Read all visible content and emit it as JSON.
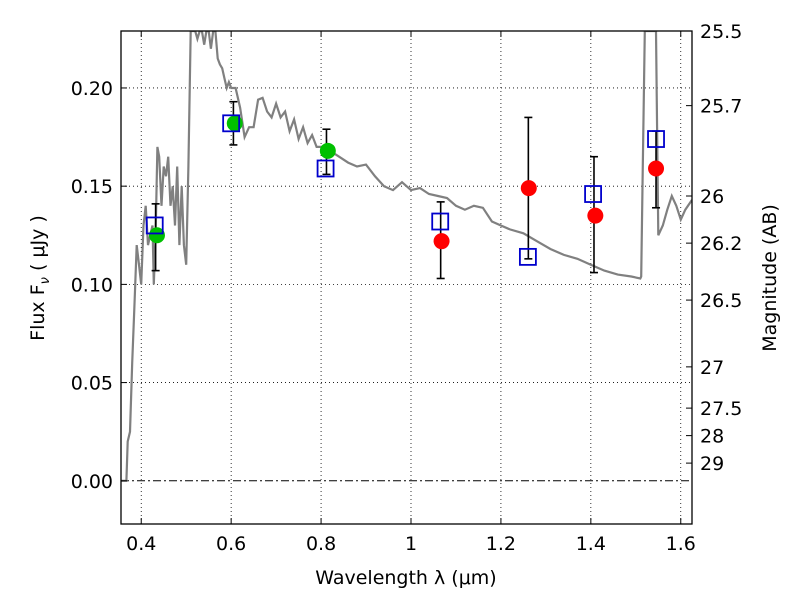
{
  "chart_data": {
    "type": "scatter",
    "xlabel": "Wavelength  λ (μm)",
    "ylabel": "Flux  F",
    "ylabel_sub": "ν",
    "ylabel_unit": "  ( μJy )",
    "y2label": "Magnitude (AB)",
    "xlim": [
      0.355,
      1.625
    ],
    "ylim": [
      -0.022,
      0.229
    ],
    "x_ticks": [
      0.4,
      0.6,
      0.8,
      1.0,
      1.2,
      1.4,
      1.6
    ],
    "x_tick_labels": [
      "0.4",
      "0.6",
      "0.8",
      "1",
      "1.2",
      "1.4",
      "1.6"
    ],
    "y_ticks": [
      0.0,
      0.05,
      0.1,
      0.15,
      0.2
    ],
    "y_tick_labels": [
      "0.00",
      "0.05",
      "0.10",
      "0.15",
      "0.20"
    ],
    "y2_ticks": [
      {
        "label": "25.5",
        "flux": 0.229
      },
      {
        "label": "25.7",
        "flux": 0.191
      },
      {
        "label": "26",
        "flux": 0.145
      },
      {
        "label": "26.2",
        "flux": 0.121
      },
      {
        "label": "26.5",
        "flux": 0.092
      },
      {
        "label": "27",
        "flux": 0.058
      },
      {
        "label": "27.5",
        "flux": 0.037
      },
      {
        "label": "28",
        "flux": 0.023
      },
      {
        "label": "29",
        "flux": 0.009
      }
    ],
    "grid": true,
    "colors": {
      "line": "#808080",
      "green": "#00c000",
      "red": "#ff0000",
      "square": "#0000cc",
      "errorbar": "#000000"
    },
    "series": [
      {
        "kind": "line",
        "x": [
          0.355,
          0.367,
          0.37,
          0.375,
          0.38,
          0.385,
          0.39,
          0.395,
          0.4,
          0.405,
          0.41,
          0.415,
          0.42,
          0.425,
          0.428,
          0.432,
          0.436,
          0.44,
          0.445,
          0.45,
          0.455,
          0.46,
          0.465,
          0.47,
          0.475,
          0.48,
          0.485,
          0.49,
          0.495,
          0.5,
          0.505,
          0.51,
          0.515,
          0.52,
          0.525,
          0.53,
          0.535,
          0.54,
          0.545,
          0.55,
          0.555,
          0.56,
          0.565,
          0.57,
          0.575,
          0.58,
          0.585,
          0.59,
          0.595,
          0.6,
          0.61,
          0.62,
          0.63,
          0.64,
          0.65,
          0.66,
          0.67,
          0.68,
          0.69,
          0.7,
          0.71,
          0.72,
          0.73,
          0.74,
          0.75,
          0.76,
          0.77,
          0.78,
          0.79,
          0.8,
          0.82,
          0.84,
          0.86,
          0.88,
          0.9,
          0.92,
          0.94,
          0.96,
          0.98,
          1.0,
          1.02,
          1.04,
          1.06,
          1.08,
          1.1,
          1.12,
          1.14,
          1.16,
          1.18,
          1.2,
          1.22,
          1.25,
          1.28,
          1.31,
          1.34,
          1.37,
          1.4,
          1.43,
          1.46,
          1.49,
          1.51,
          1.512,
          1.515,
          1.52,
          1.525,
          1.53,
          1.535,
          1.54,
          1.545,
          1.55,
          1.56,
          1.57,
          1.58,
          1.59,
          1.6,
          1.61,
          1.625
        ],
        "y": [
          0.0,
          0.0,
          0.02,
          0.025,
          0.06,
          0.09,
          0.12,
          0.11,
          0.1,
          0.13,
          0.14,
          0.12,
          0.125,
          0.13,
          0.1,
          0.125,
          0.17,
          0.165,
          0.14,
          0.16,
          0.155,
          0.165,
          0.14,
          0.15,
          0.13,
          0.16,
          0.12,
          0.15,
          0.12,
          0.11,
          0.16,
          0.229,
          0.229,
          0.229,
          0.225,
          0.229,
          0.229,
          0.222,
          0.229,
          0.229,
          0.22,
          0.229,
          0.229,
          0.215,
          0.212,
          0.21,
          0.205,
          0.2,
          0.203,
          0.2,
          0.2,
          0.19,
          0.175,
          0.18,
          0.18,
          0.194,
          0.195,
          0.188,
          0.185,
          0.192,
          0.185,
          0.188,
          0.178,
          0.184,
          0.174,
          0.18,
          0.172,
          0.176,
          0.17,
          0.17,
          0.168,
          0.165,
          0.162,
          0.16,
          0.161,
          0.155,
          0.15,
          0.148,
          0.152,
          0.148,
          0.149,
          0.146,
          0.145,
          0.144,
          0.14,
          0.138,
          0.14,
          0.139,
          0.132,
          0.13,
          0.128,
          0.126,
          0.122,
          0.118,
          0.115,
          0.113,
          0.11,
          0.107,
          0.105,
          0.104,
          0.103,
          0.104,
          0.15,
          0.229,
          0.229,
          0.229,
          0.229,
          0.229,
          0.229,
          0.125,
          0.13,
          0.138,
          0.145,
          0.14,
          0.133,
          0.138,
          0.143
        ]
      },
      {
        "kind": "scatter-circle",
        "color": "green",
        "x": [
          0.435,
          0.608,
          0.815
        ],
        "y": [
          0.125,
          0.182,
          0.168
        ]
      },
      {
        "kind": "scatter-circle",
        "color": "red",
        "x": [
          1.068,
          1.262,
          1.41,
          1.545
        ],
        "y": [
          0.122,
          0.149,
          0.135,
          0.159
        ]
      },
      {
        "kind": "scatter-square",
        "color": "square",
        "x": [
          0.43,
          0.6,
          0.81,
          1.065,
          1.26,
          1.405,
          1.545
        ],
        "y": [
          0.13,
          0.182,
          0.159,
          0.132,
          0.114,
          0.146,
          0.174
        ]
      },
      {
        "kind": "errorbar",
        "x": [
          0.432,
          0.605,
          0.812,
          1.066,
          1.261,
          1.407,
          1.545
        ],
        "ylow": [
          0.107,
          0.171,
          0.156,
          0.103,
          0.113,
          0.106,
          0.139
        ],
        "yhigh": [
          0.141,
          0.193,
          0.179,
          0.142,
          0.185,
          0.165,
          0.178
        ]
      }
    ]
  }
}
